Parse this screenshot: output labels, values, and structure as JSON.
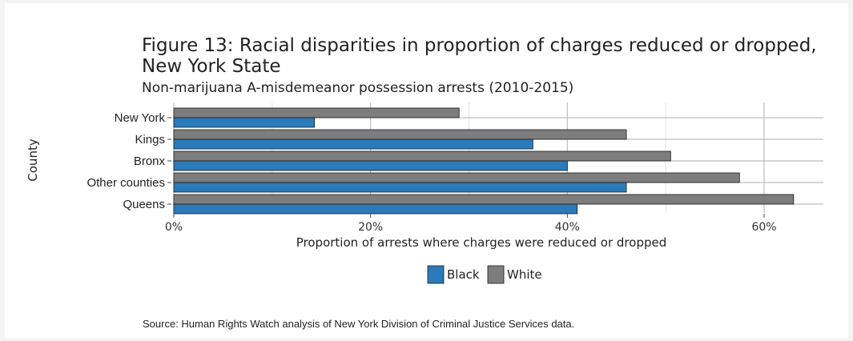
{
  "chart_data": {
    "type": "bar",
    "orientation": "horizontal",
    "title": "Figure 13: Racial disparities in proportion of charges reduced or dropped, New York State",
    "title_lines": [
      "Figure 13: Racial disparities in proportion of charges reduced or dropped,",
      "New York State"
    ],
    "subtitle": "Non-marijuana A-misdemeanor possession arrests (2010-2015)",
    "xlabel": "Proportion of arrests where charges were reduced or dropped",
    "ylabel": "County",
    "categories": [
      "New York",
      "Kings",
      "Bronx",
      "Other counties",
      "Queens"
    ],
    "series": [
      {
        "name": "White",
        "color": "#7d7d7d",
        "values": [
          29,
          46,
          50.5,
          57.5,
          63
        ]
      },
      {
        "name": "Black",
        "color": "#2b7bba",
        "values": [
          14.3,
          36.5,
          40,
          46,
          41
        ]
      }
    ],
    "xlim": [
      0,
      66
    ],
    "x_ticks": [
      0,
      20,
      40,
      60
    ],
    "x_tick_labels": [
      "0%",
      "20%",
      "40%",
      "60%"
    ],
    "legend_order": [
      "Black",
      "White"
    ],
    "legend_position": "bottom",
    "grid": true
  },
  "source": "Source: Human Rights Watch analysis of New York Division of Criminal Justice Services data."
}
